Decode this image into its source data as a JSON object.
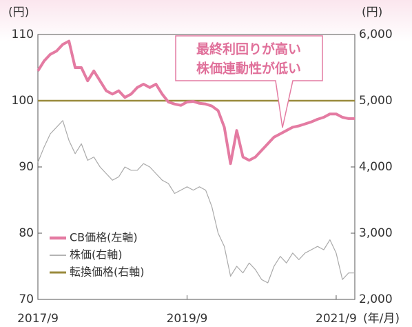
{
  "chart_data": {
    "type": "line",
    "y_unit": "(円)",
    "y2_unit": "(円)",
    "x_unit": "(年/月)",
    "annotation": [
      "最終利回りが高い",
      "株価連動性が低い"
    ],
    "categories": [
      "2017/9",
      null,
      null,
      null,
      null,
      null,
      null,
      null,
      null,
      null,
      null,
      null,
      null,
      null,
      null,
      null,
      null,
      null,
      null,
      null,
      null,
      null,
      null,
      null,
      "2019/9",
      null,
      null,
      null,
      null,
      null,
      null,
      null,
      null,
      null,
      null,
      null,
      null,
      null,
      null,
      null,
      null,
      null,
      null,
      null,
      null,
      null,
      null,
      null,
      "2021/9",
      null,
      null,
      null
    ],
    "ylim": [
      70,
      110
    ],
    "yticks": [
      70,
      80,
      90,
      100,
      110
    ],
    "y2lim": [
      2000,
      6000
    ],
    "y2ticks": [
      {
        "value": 2000,
        "label": "2,000"
      },
      {
        "value": 3000,
        "label": "3,000"
      },
      {
        "value": 4000,
        "label": "4,000"
      },
      {
        "value": 5000,
        "label": "5,000"
      },
      {
        "value": 6000,
        "label": "6,000"
      }
    ],
    "series": [
      {
        "name": "CB価格(左軸)",
        "color": "#e47ba2",
        "width": 4,
        "values": [
          104.5,
          106,
          107,
          107.5,
          108.5,
          109,
          105,
          105,
          103,
          104.5,
          103,
          101.5,
          101,
          101.5,
          100.5,
          101,
          102,
          102.5,
          102,
          102.5,
          101,
          99.8,
          99.5,
          99.3,
          99.8,
          99.9,
          99.6,
          99.5,
          99.2,
          98.5,
          96,
          90.5,
          95.5,
          91.5,
          91,
          91.5,
          92.5,
          93.5,
          94.5,
          95,
          95.5,
          96,
          96.2,
          96.5,
          96.8,
          97.2,
          97.5,
          98,
          98,
          97.5,
          97.3,
          97.3
        ]
      },
      {
        "name": "株価(右軸)",
        "color": "#aaaaaa",
        "width": 1.2,
        "axis": "y2",
        "values": [
          4070,
          4300,
          4500,
          4600,
          4700,
          4400,
          4200,
          4350,
          4100,
          4150,
          4000,
          3900,
          3800,
          3850,
          4000,
          3950,
          3950,
          4050,
          4000,
          3900,
          3800,
          3750,
          3600,
          3650,
          3700,
          3650,
          3700,
          3650,
          3400,
          3000,
          2800,
          2350,
          2500,
          2400,
          2550,
          2450,
          2300,
          2250,
          2500,
          2650,
          2550,
          2700,
          2600,
          2700,
          2750,
          2800,
          2750,
          2900,
          2700,
          2300,
          2400,
          2400
        ]
      },
      {
        "name": "転換価格(右軸)",
        "color": "#9a8a3c",
        "width": 2.5,
        "axis": "y2",
        "values": [
          5000,
          5000,
          5000,
          5000,
          5000,
          5000,
          5000,
          5000,
          5000,
          5000,
          5000,
          5000,
          5000,
          5000,
          5000,
          5000,
          5000,
          5000,
          5000,
          5000,
          5000,
          5000,
          5000,
          5000,
          5000,
          5000,
          5000,
          5000,
          5000,
          5000,
          5000,
          5000,
          5000,
          5000,
          5000,
          5000,
          5000,
          5000,
          5000,
          5000,
          5000,
          5000,
          5000,
          5000,
          5000,
          5000,
          5000,
          5000,
          5000,
          5000,
          5000,
          5000
        ]
      }
    ]
  }
}
